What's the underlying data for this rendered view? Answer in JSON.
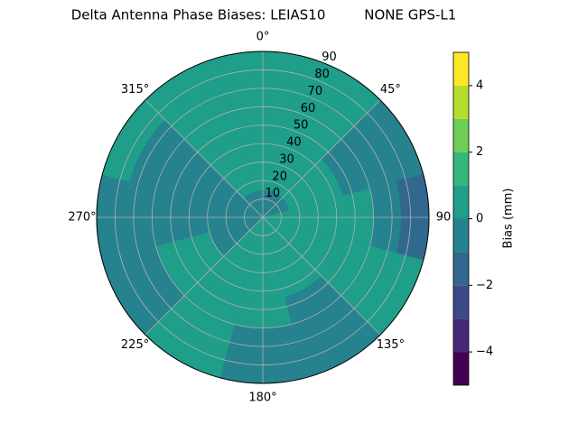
{
  "chart_data": {
    "type": "polar-contour",
    "title": "Delta Antenna Phase Biases: LEIAS10         NONE GPS-L1",
    "theta_zero": "N",
    "theta_direction": "clockwise",
    "thetaticks": [
      {
        "value": 0,
        "label": "0°"
      },
      {
        "value": 45,
        "label": "45°"
      },
      90,
      {
        "value": 135,
        "label": "135°"
      },
      {
        "value": 180,
        "label": "180°"
      },
      {
        "value": 225,
        "label": "225°"
      },
      {
        "value": 270,
        "label": "270°"
      },
      {
        "value": 315,
        "label": "315°"
      }
    ],
    "rlim": [
      0,
      90
    ],
    "rticks": [
      10,
      20,
      30,
      40,
      50,
      60,
      70,
      80,
      90
    ],
    "grid": true,
    "azimuth": [
      0,
      30,
      60,
      90,
      120,
      150,
      180,
      210,
      240,
      270,
      300,
      330
    ],
    "radius": [
      7.5,
      22.5,
      37.5,
      52.5,
      67.5,
      82.5
    ],
    "z": [
      [
        -0.5,
        0.5,
        0.5,
        0.5,
        0.5,
        0.5
      ],
      [
        -0.5,
        0.5,
        0.5,
        0.5,
        0.5,
        0.5
      ],
      [
        -0.5,
        0.5,
        0.5,
        -0.5,
        -0.5,
        -0.5
      ],
      [
        0.5,
        0.5,
        0.5,
        0.5,
        -0.5,
        -1.5
      ],
      [
        0.5,
        0.5,
        0.5,
        0.5,
        0.5,
        0.5
      ],
      [
        0.5,
        0.5,
        0.5,
        -0.5,
        -0.5,
        -0.5
      ],
      [
        0.5,
        0.5,
        0.5,
        0.5,
        -0.5,
        -0.5
      ],
      [
        0.5,
        0.5,
        0.5,
        0.5,
        0.5,
        0.5
      ],
      [
        -0.5,
        -0.5,
        0.5,
        0.5,
        -0.5,
        -0.5
      ],
      [
        -0.5,
        -0.5,
        -0.5,
        -0.5,
        -0.5,
        -0.5
      ],
      [
        -0.5,
        -0.5,
        -0.5,
        -0.5,
        -0.5,
        0.5
      ],
      [
        -0.5,
        0.5,
        0.5,
        0.5,
        0.5,
        0.5
      ]
    ],
    "levels": [
      -5,
      -4,
      -3,
      -2,
      -1,
      0,
      1,
      2,
      3,
      4,
      5
    ],
    "colors": [
      "#440154",
      "#482878",
      "#3e4989",
      "#31688e",
      "#26828e",
      "#1f9e89",
      "#35b779",
      "#6ece58",
      "#b5de2b",
      "#fde725"
    ],
    "colorbar_label": "Bias (mm)",
    "clim": [
      -5,
      5
    ],
    "cticks": [
      {
        "value": -4,
        "label": "−4"
      },
      {
        "value": -2,
        "label": "−2"
      },
      0,
      2,
      4
    ]
  }
}
